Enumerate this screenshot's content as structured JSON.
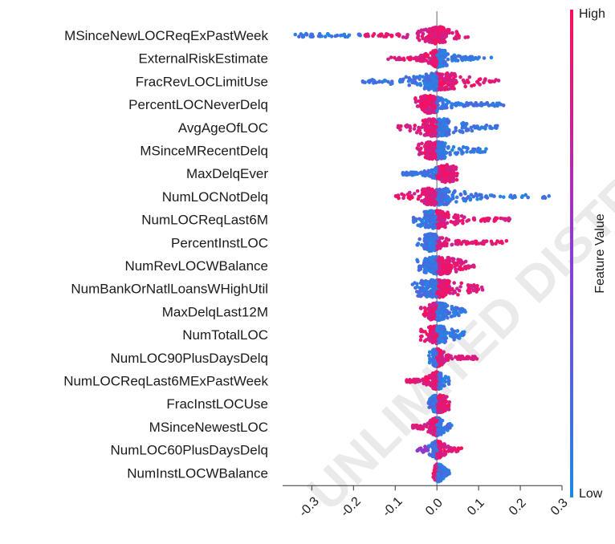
{
  "chart_data": {
    "type": "scatter",
    "subtype": "shap-beeswarm",
    "title": "",
    "xlabel": "",
    "ylabel": "",
    "xlim": [
      -0.37,
      0.3
    ],
    "xticks": [
      -0.3,
      -0.2,
      -0.1,
      0.0,
      0.1,
      0.2,
      0.3
    ],
    "xtick_labels": [
      "-0.3",
      "-0.2",
      "-0.1",
      "0.0",
      "0.1",
      "0.2",
      "0.3"
    ],
    "grid": false,
    "colorbar": {
      "label": "Feature Value",
      "high_label": "High",
      "low_label": "Low",
      "high_color": "#ff0d57",
      "low_color": "#1e88e5"
    },
    "watermark": "UNLIMITED DISTR",
    "features": [
      {
        "name": "MSinceNewLOCReqExPastWeek",
        "min": -0.35,
        "max": 0.08,
        "low_range": [
          -0.35,
          -0.18
        ],
        "high_range": [
          -0.18,
          0.08
        ],
        "core": [
          -0.02,
          0.02
        ]
      },
      {
        "name": "ExternalRiskEstimate",
        "min": -0.12,
        "max": 0.14,
        "low_range": [
          0.0,
          0.14
        ],
        "high_range": [
          -0.12,
          0.0
        ],
        "core": [
          -0.01,
          0.02
        ]
      },
      {
        "name": "FracRevLOCLimitUse",
        "min": -0.18,
        "max": 0.15,
        "low_range": [
          -0.18,
          0.0
        ],
        "high_range": [
          0.0,
          0.15
        ],
        "core": [
          -0.03,
          0.04
        ]
      },
      {
        "name": "PercentLOCNeverDelq",
        "min": -0.06,
        "max": 0.16,
        "low_range": [
          0.0,
          0.16
        ],
        "high_range": [
          -0.06,
          0.0
        ],
        "core": [
          -0.04,
          0.0
        ]
      },
      {
        "name": "AvgAgeOfLOC",
        "min": -0.1,
        "max": 0.15,
        "low_range": [
          0.0,
          0.15
        ],
        "high_range": [
          -0.1,
          0.0
        ],
        "core": [
          -0.03,
          0.03
        ]
      },
      {
        "name": "MSinceMRecentDelq",
        "min": -0.05,
        "max": 0.12,
        "low_range": [
          0.0,
          0.12
        ],
        "high_range": [
          -0.05,
          0.0
        ],
        "core": [
          -0.03,
          0.02
        ]
      },
      {
        "name": "MaxDelqEver",
        "min": -0.09,
        "max": 0.05,
        "low_range": [
          -0.09,
          0.0
        ],
        "high_range": [
          0.0,
          0.05
        ],
        "core": [
          0.01,
          0.04
        ]
      },
      {
        "name": "NumLOCNotDelq",
        "min": -0.1,
        "max": 0.27,
        "low_range": [
          0.0,
          0.27
        ],
        "high_range": [
          -0.1,
          0.0
        ],
        "core": [
          -0.03,
          0.03
        ]
      },
      {
        "name": "NumLOCReqLast6M",
        "min": -0.06,
        "max": 0.18,
        "low_range": [
          -0.06,
          0.0
        ],
        "high_range": [
          0.0,
          0.18
        ],
        "core": [
          -0.03,
          0.02
        ]
      },
      {
        "name": "PercentInstLOC",
        "min": -0.05,
        "max": 0.17,
        "low_range": [
          -0.05,
          0.0
        ],
        "high_range": [
          0.0,
          0.17
        ],
        "core": [
          -0.03,
          0.0
        ]
      },
      {
        "name": "NumRevLOCWBalance",
        "min": -0.05,
        "max": 0.09,
        "low_range": [
          -0.05,
          0.0
        ],
        "high_range": [
          0.0,
          0.09
        ],
        "core": [
          -0.03,
          0.03
        ]
      },
      {
        "name": "NumBankOrNatlLoansWHighUtil",
        "min": -0.06,
        "max": 0.11,
        "low_range": [
          -0.06,
          0.0
        ],
        "high_range": [
          0.0,
          0.11
        ],
        "core": [
          -0.04,
          0.03
        ]
      },
      {
        "name": "MaxDelqLast12M",
        "min": -0.04,
        "max": 0.07,
        "low_range": [
          0.0,
          0.07
        ],
        "high_range": [
          -0.04,
          0.0
        ],
        "core": [
          -0.02,
          0.02
        ]
      },
      {
        "name": "NumTotalLOC",
        "min": -0.04,
        "max": 0.07,
        "low_range": [
          0.0,
          0.07
        ],
        "high_range": [
          -0.04,
          0.0
        ],
        "core": [
          -0.02,
          0.02
        ]
      },
      {
        "name": "NumLOC90PlusDaysDelq",
        "min": -0.02,
        "max": 0.1,
        "low_range": [
          -0.02,
          0.0
        ],
        "high_range": [
          0.0,
          0.1
        ],
        "core": [
          -0.01,
          0.01
        ]
      },
      {
        "name": "NumLOCReqLast6MExPastWeek",
        "min": -0.08,
        "max": 0.03,
        "low_range": [
          0.0,
          0.03
        ],
        "high_range": [
          -0.08,
          0.0
        ],
        "core": [
          -0.01,
          0.01
        ]
      },
      {
        "name": "FracInstLOCUse",
        "min": -0.02,
        "max": 0.03,
        "low_range": [
          -0.02,
          0.0
        ],
        "high_range": [
          0.0,
          0.03
        ],
        "core": [
          -0.01,
          0.02
        ]
      },
      {
        "name": "MSinceNewestLOC",
        "min": -0.06,
        "max": 0.04,
        "low_range": [
          0.0,
          0.04
        ],
        "high_range": [
          -0.06,
          0.0
        ],
        "core": [
          -0.01,
          0.01
        ]
      },
      {
        "name": "NumLOC60PlusDaysDelq",
        "min": -0.05,
        "max": 0.06,
        "low_range": [
          -0.02,
          0.0
        ],
        "high_range": [
          0.0,
          0.06
        ],
        "core": [
          -0.01,
          0.01
        ]
      },
      {
        "name": "NumInstLOCWBalance",
        "min": -0.01,
        "max": 0.03,
        "low_range": [
          0.0,
          0.03
        ],
        "high_range": [
          -0.01,
          0.0
        ],
        "core": [
          -0.005,
          0.01
        ]
      }
    ]
  }
}
